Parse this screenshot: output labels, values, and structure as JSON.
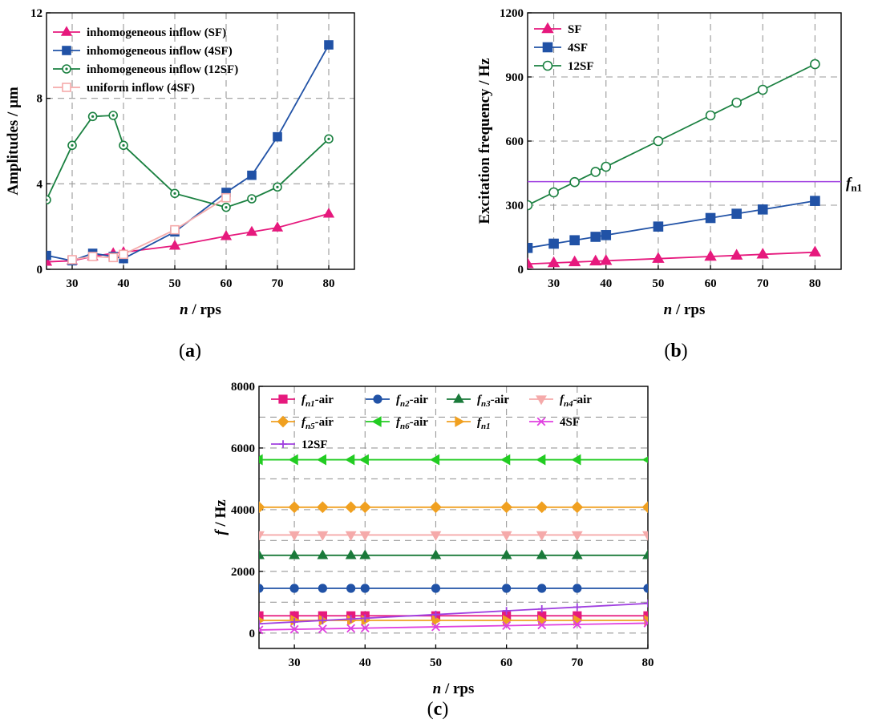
{
  "chart_data": [
    {
      "type": "line",
      "panel_label": "(a)",
      "xlabel_italic": "n",
      "xlabel_rest": " / rps",
      "ylabel": "Amplitudes / μm",
      "xlim": [
        25,
        85
      ],
      "ylim": [
        0,
        12
      ],
      "xticks": [
        30,
        40,
        50,
        60,
        70,
        80
      ],
      "yticks": [
        0,
        4,
        8,
        12
      ],
      "grid": true,
      "legend": "top-left",
      "series": [
        {
          "name": "inhomogeneous inflow (SF)",
          "color": "#e6197d",
          "marker": "triangle",
          "filled": true,
          "x": [
            25,
            30,
            34,
            38,
            40,
            50,
            60,
            65,
            70,
            80
          ],
          "y": [
            0.35,
            0.4,
            0.6,
            0.75,
            0.8,
            1.1,
            1.55,
            1.75,
            1.95,
            2.6
          ]
        },
        {
          "name": "inhomogeneous inflow (4SF)",
          "color": "#2152a6",
          "marker": "square",
          "filled": true,
          "x": [
            25,
            30,
            34,
            38,
            40,
            50,
            60,
            65,
            70,
            80
          ],
          "y": [
            0.65,
            0.4,
            0.75,
            0.6,
            0.5,
            1.75,
            3.6,
            4.4,
            6.2,
            10.5
          ]
        },
        {
          "name": "inhomogeneous inflow (12SF)",
          "color": "#1a8040",
          "marker": "circle-dot",
          "filled": false,
          "x": [
            25,
            30,
            34,
            38,
            40,
            50,
            60,
            65,
            70,
            80
          ],
          "y": [
            3.25,
            5.8,
            7.15,
            7.2,
            5.8,
            3.55,
            2.9,
            3.3,
            3.85,
            6.1
          ]
        },
        {
          "name": "uniform inflow (4SF)",
          "color": "#f5aaaa",
          "marker": "square",
          "filled": false,
          "x": [
            30,
            34,
            38,
            40,
            50,
            60
          ],
          "y": [
            0.45,
            0.6,
            0.55,
            0.7,
            1.85,
            3.35
          ]
        }
      ]
    },
    {
      "type": "line",
      "panel_label": "(b)",
      "xlabel_italic": "n",
      "xlabel_rest": " / rps",
      "ylabel": "Excitation frequency / Hz",
      "xlim": [
        25,
        85
      ],
      "ylim": [
        0,
        1200
      ],
      "xticks": [
        30,
        40,
        50,
        60,
        70,
        80
      ],
      "yticks": [
        0,
        300,
        600,
        900,
        1200
      ],
      "grid": true,
      "legend": "top-left",
      "hline": {
        "y": 410,
        "label_main": "f",
        "label_sub": "n1",
        "color": "#a040e0"
      },
      "series": [
        {
          "name": "SF",
          "color": "#e6197d",
          "marker": "triangle",
          "filled": true,
          "x": [
            25,
            30,
            34,
            38,
            40,
            50,
            60,
            65,
            70,
            80
          ],
          "y": [
            25,
            30,
            34,
            38,
            40,
            50,
            60,
            65,
            70,
            80
          ]
        },
        {
          "name": "4SF",
          "color": "#2152a6",
          "marker": "square",
          "filled": true,
          "x": [
            25,
            30,
            34,
            38,
            40,
            50,
            60,
            65,
            70,
            80
          ],
          "y": [
            100,
            120,
            136,
            152,
            160,
            200,
            240,
            260,
            280,
            320
          ]
        },
        {
          "name": "12SF",
          "color": "#1a8040",
          "marker": "circle",
          "filled": false,
          "x": [
            25,
            30,
            34,
            38,
            40,
            50,
            60,
            65,
            70,
            80
          ],
          "y": [
            300,
            360,
            408,
            456,
            480,
            600,
            720,
            780,
            840,
            960
          ]
        }
      ]
    },
    {
      "type": "line",
      "panel_label": "(c)",
      "xlabel_italic": "n",
      "xlabel_rest": " / rps",
      "ylabel_italic": "f",
      "ylabel_rest": " / Hz",
      "xlim": [
        25,
        80
      ],
      "ylim": [
        -500,
        8000
      ],
      "xticks": [
        30,
        40,
        50,
        60,
        70,
        80
      ],
      "yticks": [
        0,
        2000,
        4000,
        6000,
        8000
      ],
      "grid": true,
      "legend": "top",
      "series": [
        {
          "name_main": "f",
          "name_sub": "n1",
          "name_rest": "-air",
          "color": "#e6197d",
          "marker": "square",
          "filled": true,
          "x": [
            25,
            30,
            34,
            38,
            40,
            50,
            60,
            65,
            70,
            80
          ],
          "y": [
            560,
            560,
            560,
            560,
            560,
            560,
            560,
            560,
            560,
            560
          ]
        },
        {
          "name_main": "f",
          "name_sub": "n2",
          "name_rest": "-air",
          "color": "#2152a6",
          "marker": "circle",
          "filled": true,
          "x": [
            25,
            30,
            34,
            38,
            40,
            50,
            60,
            65,
            70,
            80
          ],
          "y": [
            1450,
            1450,
            1450,
            1450,
            1450,
            1450,
            1450,
            1450,
            1450,
            1450
          ]
        },
        {
          "name_main": "f",
          "name_sub": "n3",
          "name_rest": "-air",
          "color": "#1a7a3a",
          "marker": "triangle",
          "filled": true,
          "x": [
            25,
            30,
            34,
            38,
            40,
            50,
            60,
            65,
            70,
            80
          ],
          "y": [
            2520,
            2520,
            2520,
            2520,
            2520,
            2520,
            2520,
            2520,
            2520,
            2520
          ]
        },
        {
          "name_main": "f",
          "name_sub": "n4",
          "name_rest": "-air",
          "color": "#f5aaaa",
          "marker": "triangle-down",
          "filled": true,
          "x": [
            25,
            30,
            34,
            38,
            40,
            50,
            60,
            65,
            70,
            80
          ],
          "y": [
            3180,
            3180,
            3180,
            3180,
            3180,
            3180,
            3180,
            3180,
            3180,
            3180
          ]
        },
        {
          "name_main": "f",
          "name_sub": "n5",
          "name_rest": "-air",
          "color": "#f0a020",
          "marker": "diamond",
          "filled": true,
          "x": [
            25,
            30,
            34,
            38,
            40,
            50,
            60,
            65,
            70,
            80
          ],
          "y": [
            4080,
            4080,
            4080,
            4080,
            4080,
            4080,
            4080,
            4080,
            4080,
            4080
          ]
        },
        {
          "name_main": "f",
          "name_sub": "n6",
          "name_rest": "-air",
          "color": "#22cc22",
          "marker": "triangle-left",
          "filled": true,
          "x": [
            25,
            30,
            34,
            38,
            40,
            50,
            60,
            65,
            70,
            80
          ],
          "y": [
            5620,
            5620,
            5620,
            5620,
            5620,
            5620,
            5620,
            5620,
            5620,
            5620
          ]
        },
        {
          "name_main": "f",
          "name_sub": "n1",
          "name_rest": "",
          "color": "#f0a020",
          "marker": "triangle-right",
          "filled": true,
          "x": [
            25,
            30,
            34,
            38,
            40,
            50,
            60,
            65,
            70,
            80
          ],
          "y": [
            410,
            410,
            410,
            410,
            410,
            410,
            410,
            410,
            410,
            410
          ]
        },
        {
          "name_main": "4SF",
          "name_sub": "",
          "name_rest": "",
          "color": "#e040e0",
          "marker": "x",
          "filled": false,
          "x": [
            25,
            30,
            34,
            38,
            40,
            50,
            60,
            65,
            70,
            80
          ],
          "y": [
            100,
            120,
            136,
            152,
            160,
            200,
            240,
            260,
            280,
            320
          ]
        },
        {
          "name_main": "12SF",
          "name_sub": "",
          "name_rest": "",
          "color": "#a040e0",
          "marker": "plus",
          "filled": false,
          "x": [
            25,
            30,
            34,
            38,
            40,
            50,
            60,
            65,
            70,
            80
          ],
          "y": [
            300,
            360,
            408,
            456,
            480,
            600,
            720,
            780,
            840,
            960
          ]
        }
      ]
    }
  ]
}
